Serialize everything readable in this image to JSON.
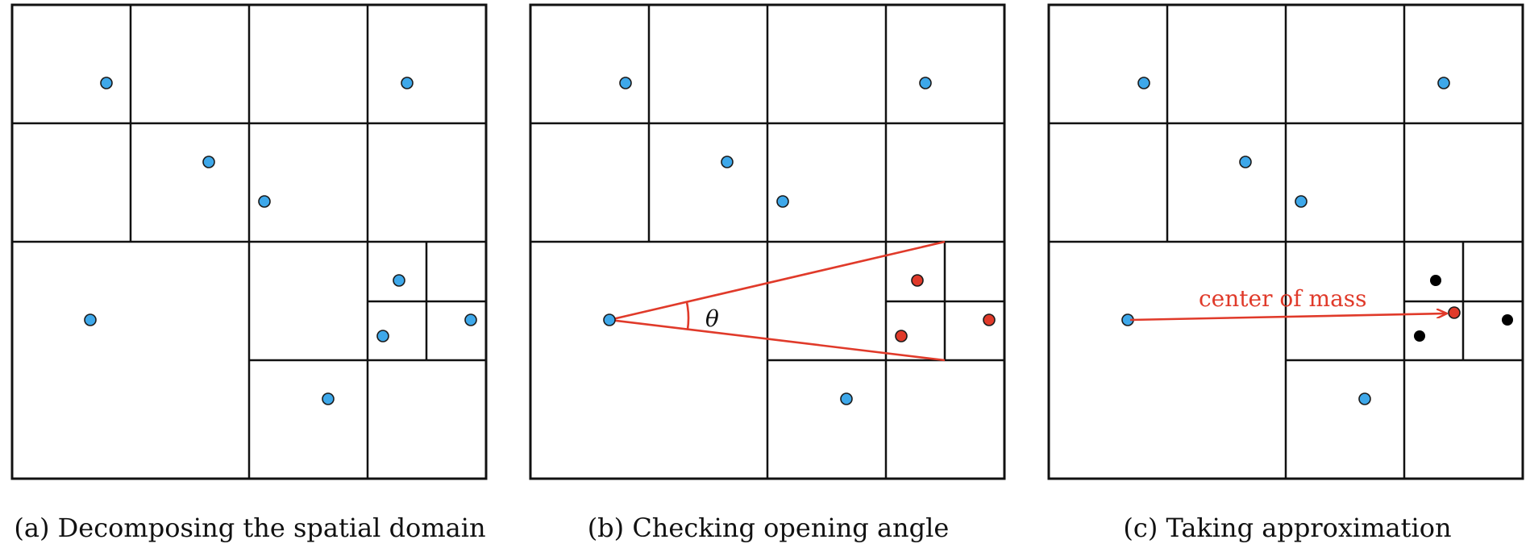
{
  "panels": [
    {
      "caption": "(a) Decomposing the spatial domain"
    },
    {
      "caption": "(b) Checking opening angle",
      "angle_symbol": "θ"
    },
    {
      "caption": "(c) Taking approximation",
      "annotation": "center of mass"
    }
  ],
  "colors": {
    "particle": "#3ea8ea",
    "highlight": "#e03a2a",
    "grouped_particle": "#000000",
    "grid": "#111111"
  }
}
